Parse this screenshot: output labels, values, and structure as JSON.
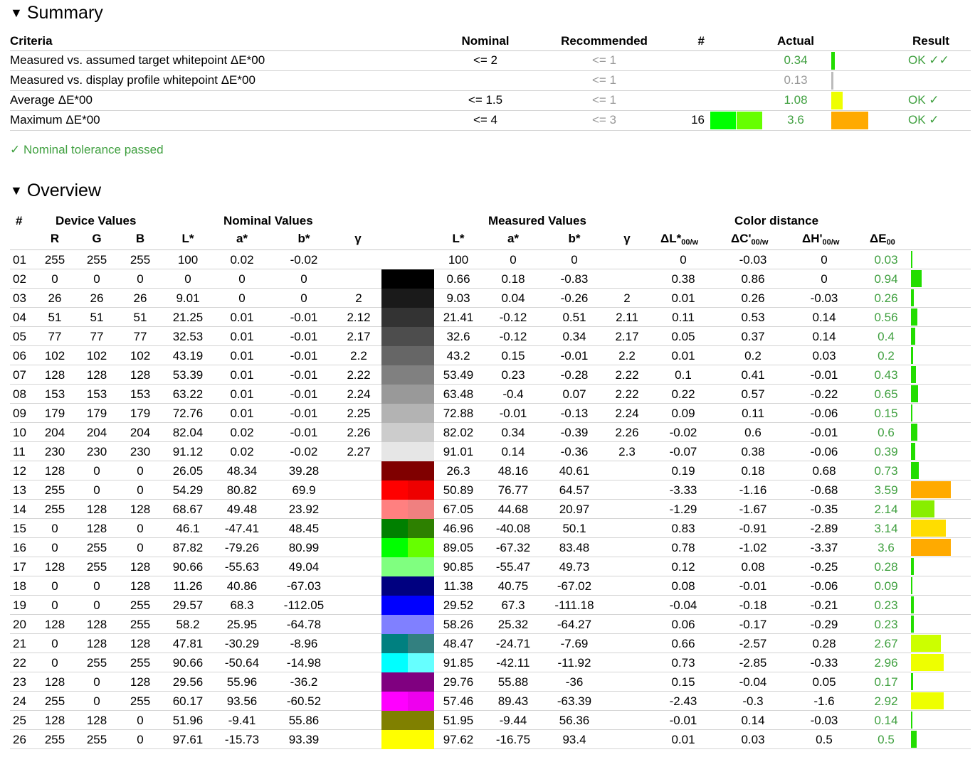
{
  "summary": {
    "title": "Summary",
    "headers": {
      "criteria": "Criteria",
      "nominal": "Nominal",
      "recommended": "Recommended",
      "hash": "#",
      "actual": "Actual",
      "result": "Result"
    },
    "rows": [
      {
        "criteria": "Measured vs. assumed target whitepoint ΔE*00",
        "nominal": "<= 2",
        "recommended": "<= 1",
        "hash": "",
        "actual": "0.34",
        "actual_style": "green",
        "result": "OK ✓✓",
        "bar_color": "#22dd00",
        "bar_value": 0.34
      },
      {
        "criteria": "Measured vs. display profile whitepoint ΔE*00",
        "nominal": "",
        "recommended": "<= 1",
        "hash": "",
        "actual": "0.13",
        "actual_style": "grey",
        "result": "",
        "bar_color": "#bbbbbb",
        "bar_value": 0.13
      },
      {
        "criteria": "Average ΔE*00",
        "nominal": "<= 1.5",
        "recommended": "<= 1",
        "hash": "",
        "actual": "1.08",
        "actual_style": "green",
        "result": "OK ✓",
        "bar_color": "#eeff00",
        "bar_value": 1.08
      },
      {
        "criteria": "Maximum ΔE*00",
        "nominal": "<= 4",
        "recommended": "<= 3",
        "hash": "16",
        "actual": "3.6",
        "actual_style": "green",
        "result": "OK ✓",
        "bar_color": "#ffaa00",
        "bar_value": 3.6,
        "swatch": [
          "#00ff00",
          "#66ff00"
        ]
      }
    ],
    "pass_text": "✓ Nominal tolerance passed"
  },
  "overview": {
    "title": "Overview",
    "groups": {
      "hash": "#",
      "device": "Device Values",
      "nominal": "Nominal Values",
      "measured": "Measured Values",
      "distance": "Color distance"
    },
    "headers": {
      "r": "R",
      "g": "G",
      "b": "B",
      "nl": "L*",
      "na": "a*",
      "nb": "b*",
      "ng": "γ",
      "ml": "L*",
      "ma": "a*",
      "mb": "b*",
      "mg": "γ",
      "dl": "ΔL*",
      "dc": "ΔC'",
      "dh": "ΔH'",
      "de": "ΔE",
      "sub_w": "00/w",
      "sub_00": "00"
    },
    "rows": [
      {
        "n": "01",
        "r": "255",
        "g": "255",
        "b": "255",
        "nl": "100",
        "na": "0.02",
        "nb": "-0.02",
        "ng": "",
        "ml": "100",
        "ma": "0",
        "mb": "0",
        "mg": "",
        "dl": "0",
        "dc": "-0.03",
        "dh": "0",
        "de": "0.03",
        "sw1": "#ffffff",
        "sw2": "#ffffff",
        "bar": "#22dd00",
        "dev": 0.03
      },
      {
        "n": "02",
        "r": "0",
        "g": "0",
        "b": "0",
        "nl": "0",
        "na": "0",
        "nb": "0",
        "ng": "",
        "ml": "0.66",
        "ma": "0.18",
        "mb": "-0.83",
        "mg": "",
        "dl": "0.38",
        "dc": "0.86",
        "dh": "0",
        "de": "0.94",
        "sw1": "#000000",
        "sw2": "#000000",
        "bar": "#22dd00",
        "dev": 0.94
      },
      {
        "n": "03",
        "r": "26",
        "g": "26",
        "b": "26",
        "nl": "9.01",
        "na": "0",
        "nb": "0",
        "ng": "2",
        "ml": "9.03",
        "ma": "0.04",
        "mb": "-0.26",
        "mg": "2",
        "dl": "0.01",
        "dc": "0.26",
        "dh": "-0.03",
        "de": "0.26",
        "sw1": "#1a1a1a",
        "sw2": "#1a1a1a",
        "bar": "#22dd00",
        "dev": 0.26
      },
      {
        "n": "04",
        "r": "51",
        "g": "51",
        "b": "51",
        "nl": "21.25",
        "na": "0.01",
        "nb": "-0.01",
        "ng": "2.12",
        "ml": "21.41",
        "ma": "-0.12",
        "mb": "0.51",
        "mg": "2.11",
        "dl": "0.11",
        "dc": "0.53",
        "dh": "0.14",
        "de": "0.56",
        "sw1": "#333333",
        "sw2": "#333333",
        "bar": "#22dd00",
        "dev": 0.56
      },
      {
        "n": "05",
        "r": "77",
        "g": "77",
        "b": "77",
        "nl": "32.53",
        "na": "0.01",
        "nb": "-0.01",
        "ng": "2.17",
        "ml": "32.6",
        "ma": "-0.12",
        "mb": "0.34",
        "mg": "2.17",
        "dl": "0.05",
        "dc": "0.37",
        "dh": "0.14",
        "de": "0.4",
        "sw1": "#4d4d4d",
        "sw2": "#4d4d4d",
        "bar": "#22dd00",
        "dev": 0.4
      },
      {
        "n": "06",
        "r": "102",
        "g": "102",
        "b": "102",
        "nl": "43.19",
        "na": "0.01",
        "nb": "-0.01",
        "ng": "2.2",
        "ml": "43.2",
        "ma": "0.15",
        "mb": "-0.01",
        "mg": "2.2",
        "dl": "0.01",
        "dc": "0.2",
        "dh": "0.03",
        "de": "0.2",
        "sw1": "#666666",
        "sw2": "#666666",
        "bar": "#22dd00",
        "dev": 0.2
      },
      {
        "n": "07",
        "r": "128",
        "g": "128",
        "b": "128",
        "nl": "53.39",
        "na": "0.01",
        "nb": "-0.01",
        "ng": "2.22",
        "ml": "53.49",
        "ma": "0.23",
        "mb": "-0.28",
        "mg": "2.22",
        "dl": "0.1",
        "dc": "0.41",
        "dh": "-0.01",
        "de": "0.43",
        "sw1": "#808080",
        "sw2": "#808080",
        "bar": "#22dd00",
        "dev": 0.43
      },
      {
        "n": "08",
        "r": "153",
        "g": "153",
        "b": "153",
        "nl": "63.22",
        "na": "0.01",
        "nb": "-0.01",
        "ng": "2.24",
        "ml": "63.48",
        "ma": "-0.4",
        "mb": "0.07",
        "mg": "2.22",
        "dl": "0.22",
        "dc": "0.57",
        "dh": "-0.22",
        "de": "0.65",
        "sw1": "#999999",
        "sw2": "#999999",
        "bar": "#22dd00",
        "dev": 0.65
      },
      {
        "n": "09",
        "r": "179",
        "g": "179",
        "b": "179",
        "nl": "72.76",
        "na": "0.01",
        "nb": "-0.01",
        "ng": "2.25",
        "ml": "72.88",
        "ma": "-0.01",
        "mb": "-0.13",
        "mg": "2.24",
        "dl": "0.09",
        "dc": "0.11",
        "dh": "-0.06",
        "de": "0.15",
        "sw1": "#b3b3b3",
        "sw2": "#b3b3b3",
        "bar": "#22dd00",
        "dev": 0.15
      },
      {
        "n": "10",
        "r": "204",
        "g": "204",
        "b": "204",
        "nl": "82.04",
        "na": "0.02",
        "nb": "-0.01",
        "ng": "2.26",
        "ml": "82.02",
        "ma": "0.34",
        "mb": "-0.39",
        "mg": "2.26",
        "dl": "-0.02",
        "dc": "0.6",
        "dh": "-0.01",
        "de": "0.6",
        "sw1": "#cccccc",
        "sw2": "#cccccc",
        "bar": "#22dd00",
        "dev": 0.6
      },
      {
        "n": "11",
        "r": "230",
        "g": "230",
        "b": "230",
        "nl": "91.12",
        "na": "0.02",
        "nb": "-0.02",
        "ng": "2.27",
        "ml": "91.01",
        "ma": "0.14",
        "mb": "-0.36",
        "mg": "2.3",
        "dl": "-0.07",
        "dc": "0.38",
        "dh": "-0.06",
        "de": "0.39",
        "sw1": "#e6e6e6",
        "sw2": "#e6e6e6",
        "bar": "#22dd00",
        "dev": 0.39
      },
      {
        "n": "12",
        "r": "128",
        "g": "0",
        "b": "0",
        "nl": "26.05",
        "na": "48.34",
        "nb": "39.28",
        "ng": "",
        "ml": "26.3",
        "ma": "48.16",
        "mb": "40.61",
        "mg": "",
        "dl": "0.19",
        "dc": "0.18",
        "dh": "0.68",
        "de": "0.73",
        "sw1": "#800000",
        "sw2": "#800000",
        "bar": "#22dd00",
        "dev": 0.73
      },
      {
        "n": "13",
        "r": "255",
        "g": "0",
        "b": "0",
        "nl": "54.29",
        "na": "80.82",
        "nb": "69.9",
        "ng": "",
        "ml": "50.89",
        "ma": "76.77",
        "mb": "64.57",
        "mg": "",
        "dl": "-3.33",
        "dc": "-1.16",
        "dh": "-0.68",
        "de": "3.59",
        "sw1": "#ff0000",
        "sw2": "#ee0000",
        "bar": "#ffaa00",
        "dev": 3.59
      },
      {
        "n": "14",
        "r": "255",
        "g": "128",
        "b": "128",
        "nl": "68.67",
        "na": "49.48",
        "nb": "23.92",
        "ng": "",
        "ml": "67.05",
        "ma": "44.68",
        "mb": "20.97",
        "mg": "",
        "dl": "-1.29",
        "dc": "-1.67",
        "dh": "-0.35",
        "de": "2.14",
        "sw1": "#ff8080",
        "sw2": "#f08080",
        "bar": "#88ee00",
        "dev": 2.14
      },
      {
        "n": "15",
        "r": "0",
        "g": "128",
        "b": "0",
        "nl": "46.1",
        "na": "-47.41",
        "nb": "48.45",
        "ng": "",
        "ml": "46.96",
        "ma": "-40.08",
        "mb": "50.1",
        "mg": "",
        "dl": "0.83",
        "dc": "-0.91",
        "dh": "-2.89",
        "de": "3.14",
        "sw1": "#008000",
        "sw2": "#2d8000",
        "bar": "#ffdd00",
        "dev": 3.14
      },
      {
        "n": "16",
        "r": "0",
        "g": "255",
        "b": "0",
        "nl": "87.82",
        "na": "-79.26",
        "nb": "80.99",
        "ng": "",
        "ml": "89.05",
        "ma": "-67.32",
        "mb": "83.48",
        "mg": "",
        "dl": "0.78",
        "dc": "-1.02",
        "dh": "-3.37",
        "de": "3.6",
        "sw1": "#00ff00",
        "sw2": "#66ff00",
        "bar": "#ffaa00",
        "dev": 3.6
      },
      {
        "n": "17",
        "r": "128",
        "g": "255",
        "b": "128",
        "nl": "90.66",
        "na": "-55.63",
        "nb": "49.04",
        "ng": "",
        "ml": "90.85",
        "ma": "-55.47",
        "mb": "49.73",
        "mg": "",
        "dl": "0.12",
        "dc": "0.08",
        "dh": "-0.25",
        "de": "0.28",
        "sw1": "#80ff80",
        "sw2": "#80ff80",
        "bar": "#22dd00",
        "dev": 0.28
      },
      {
        "n": "18",
        "r": "0",
        "g": "0",
        "b": "128",
        "nl": "11.26",
        "na": "40.86",
        "nb": "-67.03",
        "ng": "",
        "ml": "11.38",
        "ma": "40.75",
        "mb": "-67.02",
        "mg": "",
        "dl": "0.08",
        "dc": "-0.01",
        "dh": "-0.06",
        "de": "0.09",
        "sw1": "#000080",
        "sw2": "#000080",
        "bar": "#22dd00",
        "dev": 0.09
      },
      {
        "n": "19",
        "r": "0",
        "g": "0",
        "b": "255",
        "nl": "29.57",
        "na": "68.3",
        "nb": "-112.05",
        "ng": "",
        "ml": "29.52",
        "ma": "67.3",
        "mb": "-111.18",
        "mg": "",
        "dl": "-0.04",
        "dc": "-0.18",
        "dh": "-0.21",
        "de": "0.23",
        "sw1": "#0000ff",
        "sw2": "#0000ff",
        "bar": "#22dd00",
        "dev": 0.23
      },
      {
        "n": "20",
        "r": "128",
        "g": "128",
        "b": "255",
        "nl": "58.2",
        "na": "25.95",
        "nb": "-64.78",
        "ng": "",
        "ml": "58.26",
        "ma": "25.32",
        "mb": "-64.27",
        "mg": "",
        "dl": "0.06",
        "dc": "-0.17",
        "dh": "-0.29",
        "de": "0.23",
        "sw1": "#8080ff",
        "sw2": "#8080ff",
        "bar": "#22dd00",
        "dev": 0.23
      },
      {
        "n": "21",
        "r": "0",
        "g": "128",
        "b": "128",
        "nl": "47.81",
        "na": "-30.29",
        "nb": "-8.96",
        "ng": "",
        "ml": "48.47",
        "ma": "-24.71",
        "mb": "-7.69",
        "mg": "",
        "dl": "0.66",
        "dc": "-2.57",
        "dh": "0.28",
        "de": "2.67",
        "sw1": "#008080",
        "sw2": "#338080",
        "bar": "#ccff00",
        "dev": 2.67
      },
      {
        "n": "22",
        "r": "0",
        "g": "255",
        "b": "255",
        "nl": "90.66",
        "na": "-50.64",
        "nb": "-14.98",
        "ng": "",
        "ml": "91.85",
        "ma": "-42.11",
        "mb": "-11.92",
        "mg": "",
        "dl": "0.73",
        "dc": "-2.85",
        "dh": "-0.33",
        "de": "2.96",
        "sw1": "#00ffff",
        "sw2": "#66ffff",
        "bar": "#eeff00",
        "dev": 2.96
      },
      {
        "n": "23",
        "r": "128",
        "g": "0",
        "b": "128",
        "nl": "29.56",
        "na": "55.96",
        "nb": "-36.2",
        "ng": "",
        "ml": "29.76",
        "ma": "55.88",
        "mb": "-36",
        "mg": "",
        "dl": "0.15",
        "dc": "-0.04",
        "dh": "0.05",
        "de": "0.17",
        "sw1": "#800080",
        "sw2": "#800080",
        "bar": "#22dd00",
        "dev": 0.17
      },
      {
        "n": "24",
        "r": "255",
        "g": "0",
        "b": "255",
        "nl": "60.17",
        "na": "93.56",
        "nb": "-60.52",
        "ng": "",
        "ml": "57.46",
        "ma": "89.43",
        "mb": "-63.39",
        "mg": "",
        "dl": "-2.43",
        "dc": "-0.3",
        "dh": "-1.6",
        "de": "2.92",
        "sw1": "#ff00ff",
        "sw2": "#ee00ee",
        "bar": "#eeff00",
        "dev": 2.92
      },
      {
        "n": "25",
        "r": "128",
        "g": "128",
        "b": "0",
        "nl": "51.96",
        "na": "-9.41",
        "nb": "55.86",
        "ng": "",
        "ml": "51.95",
        "ma": "-9.44",
        "mb": "56.36",
        "mg": "",
        "dl": "-0.01",
        "dc": "0.14",
        "dh": "-0.03",
        "de": "0.14",
        "sw1": "#808000",
        "sw2": "#808000",
        "bar": "#22dd00",
        "dev": 0.14
      },
      {
        "n": "26",
        "r": "255",
        "g": "255",
        "b": "0",
        "nl": "97.61",
        "na": "-15.73",
        "nb": "93.39",
        "ng": "",
        "ml": "97.62",
        "ma": "-16.75",
        "mb": "93.4",
        "mg": "",
        "dl": "0.01",
        "dc": "0.03",
        "dh": "0.5",
        "de": "0.5",
        "sw1": "#ffff00",
        "sw2": "#ffff00",
        "bar": "#22dd00",
        "dev": 0.5
      }
    ]
  }
}
